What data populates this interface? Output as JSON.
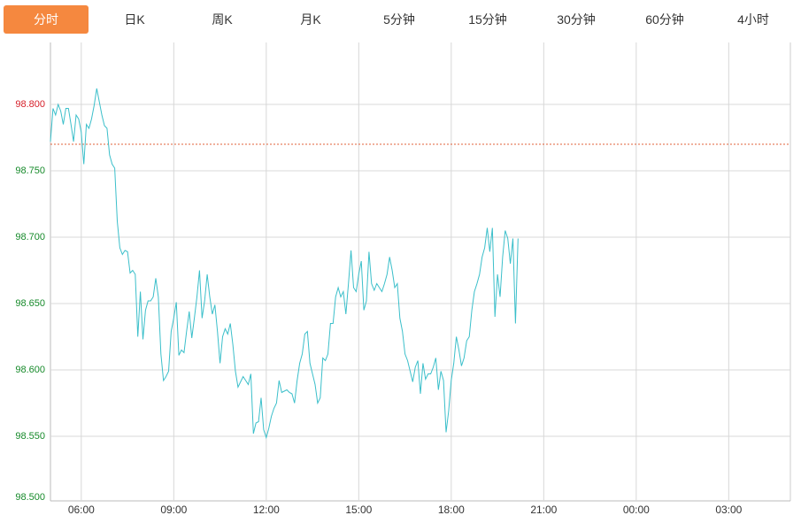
{
  "tabs": [
    "分时",
    "日K",
    "周K",
    "月K",
    "5分钟",
    "15分钟",
    "30分钟",
    "60分钟",
    "4小时"
  ],
  "active_tab": 0,
  "chart_data": {
    "type": "line",
    "x": [
      0,
      5,
      10,
      15,
      20,
      25,
      30,
      35,
      40,
      45,
      50,
      55,
      60,
      65,
      70,
      75,
      80,
      85,
      90,
      95,
      100,
      105,
      110,
      115,
      120,
      125,
      130,
      135,
      140,
      145,
      150,
      155,
      160,
      165,
      170,
      175,
      180,
      185,
      190,
      195,
      200,
      205,
      210,
      215,
      220,
      225,
      230,
      235,
      240,
      245,
      250,
      255,
      260,
      265,
      270,
      275,
      280,
      285,
      290,
      295,
      300,
      305,
      310,
      315,
      320,
      325,
      330,
      335,
      340,
      345,
      350,
      355,
      360,
      365,
      370,
      375,
      380,
      385,
      390,
      395,
      400,
      405,
      410,
      415,
      420,
      425,
      430,
      435,
      440,
      445,
      450,
      455,
      460,
      465,
      470,
      475,
      480,
      485,
      490,
      495,
      500,
      505,
      510,
      515,
      520,
      525,
      530,
      535,
      540,
      545,
      550,
      555,
      560,
      565,
      570,
      575,
      580,
      585,
      590,
      595,
      600,
      605,
      610,
      615,
      620,
      625,
      630,
      635,
      640,
      645,
      650,
      655,
      660,
      665,
      670,
      675,
      680,
      685,
      690,
      695,
      700,
      705,
      710,
      715,
      720,
      725,
      730,
      735,
      740,
      745,
      750,
      755,
      760,
      765,
      770,
      775,
      780,
      785,
      790,
      795,
      800,
      805,
      810,
      815,
      820,
      825,
      830,
      835,
      840,
      845,
      850,
      855,
      860,
      865,
      870,
      875,
      880,
      885,
      890,
      895,
      900,
      905,
      910
    ],
    "series": [
      {
        "color": "#3bbfca",
        "values": [
          98.772,
          98.797,
          98.792,
          98.8,
          98.795,
          98.785,
          98.797,
          98.797,
          98.785,
          98.772,
          98.792,
          98.789,
          98.779,
          98.755,
          98.785,
          98.782,
          98.789,
          98.799,
          98.812,
          98.802,
          98.792,
          98.784,
          98.782,
          98.762,
          98.755,
          98.752,
          98.712,
          98.692,
          98.687,
          98.69,
          98.689,
          98.673,
          98.675,
          98.672,
          98.625,
          98.659,
          98.623,
          98.645,
          98.652,
          98.652,
          98.655,
          98.669,
          98.655,
          98.612,
          98.592,
          98.595,
          98.599,
          98.629,
          98.639,
          98.651,
          98.611,
          98.615,
          98.613,
          98.629,
          98.644,
          98.624,
          98.639,
          98.655,
          98.675,
          98.639,
          98.652,
          98.672,
          98.655,
          98.642,
          98.649,
          98.629,
          98.605,
          98.625,
          98.631,
          98.627,
          98.635,
          98.619,
          98.599,
          98.587,
          98.591,
          98.595,
          98.592,
          98.589,
          98.597,
          98.552,
          98.56,
          98.561,
          98.579,
          98.555,
          98.549,
          98.556,
          98.565,
          98.571,
          98.575,
          98.592,
          98.583,
          98.584,
          98.585,
          98.583,
          98.582,
          98.575,
          98.592,
          98.605,
          98.612,
          98.627,
          98.629,
          98.605,
          98.597,
          98.589,
          98.575,
          98.579,
          98.609,
          98.607,
          98.612,
          98.635,
          98.635,
          98.655,
          98.662,
          98.655,
          98.659,
          98.642,
          98.665,
          98.69,
          98.662,
          98.659,
          98.672,
          98.682,
          98.645,
          98.652,
          98.689,
          98.665,
          98.66,
          98.665,
          98.662,
          98.659,
          98.665,
          98.672,
          98.685,
          98.675,
          98.662,
          98.665,
          98.639,
          98.629,
          98.612,
          98.607,
          98.599,
          98.591,
          98.602,
          98.607,
          98.582,
          98.605,
          98.593,
          98.597,
          98.597,
          98.602,
          98.609,
          98.585,
          98.599,
          98.592,
          98.553,
          98.569,
          98.592,
          98.605,
          98.625,
          98.615,
          98.603,
          98.609,
          98.622,
          98.625,
          98.645,
          98.659,
          98.665,
          98.672,
          98.685,
          98.692,
          98.707,
          98.689,
          98.707,
          98.64,
          98.672,
          98.655,
          98.685,
          98.705,
          98.699,
          98.68,
          98.699,
          98.635,
          98.699
        ]
      }
    ],
    "xlim": [
      0,
      1440
    ],
    "xticks": [
      {
        "value": 60,
        "label": "06:00"
      },
      {
        "value": 240,
        "label": "09:00"
      },
      {
        "value": 420,
        "label": "12:00"
      },
      {
        "value": 600,
        "label": "15:00"
      },
      {
        "value": 780,
        "label": "18:00"
      },
      {
        "value": 960,
        "label": "21:00"
      },
      {
        "value": 1140,
        "label": "00:00"
      },
      {
        "value": 1320,
        "label": "03:00"
      }
    ],
    "ylim": [
      98.5,
      98.8467
    ],
    "yticks": [
      {
        "value": 98.5,
        "label": "98.500"
      },
      {
        "value": 98.55,
        "label": "98.550"
      },
      {
        "value": 98.6,
        "label": "98.600"
      },
      {
        "value": 98.65,
        "label": "98.650"
      },
      {
        "value": 98.7,
        "label": "98.700"
      },
      {
        "value": 98.75,
        "label": "98.750"
      },
      {
        "value": 98.8,
        "label": "98.800"
      }
    ],
    "reference_line": 98.77,
    "reference_color": "#e0603a",
    "up_color": "#d6202a",
    "down_color": "#168a2a",
    "grid": true
  }
}
